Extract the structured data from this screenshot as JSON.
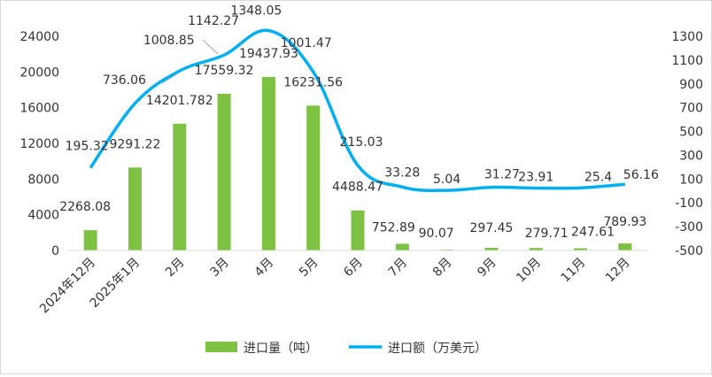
{
  "chart_data": {
    "type": "bar+line",
    "categories": [
      "2024年12月",
      "2025年1月",
      "2月",
      "3月",
      "4月",
      "5月",
      "6月",
      "7月",
      "8月",
      "9月",
      "10月",
      "11月",
      "12月"
    ],
    "series": [
      {
        "name": "进口量（吨）",
        "type": "bar",
        "axis": "left",
        "color": "#7dc242",
        "values": [
          2268.08,
          9291.22,
          14201.782,
          17559.32,
          19437.93,
          16231.56,
          4488.47,
          752.89,
          90.07,
          297.45,
          279.71,
          247.61,
          789.93
        ],
        "labels": [
          "2268.08",
          "9291.22",
          "14201.782",
          "17559.32",
          "19437.93",
          "16231.56",
          "4488.47",
          "752.89",
          "90.07",
          "297.45",
          "279.71",
          "247.61",
          "789.93"
        ]
      },
      {
        "name": "进口额（万美元）",
        "type": "line",
        "axis": "right",
        "color": "#00b0f0",
        "values": [
          195.32,
          736.06,
          1008.85,
          1142.27,
          1348.05,
          1001.47,
          215.03,
          33.28,
          5.04,
          31.27,
          23.91,
          25.4,
          56.16
        ],
        "labels": [
          "195.32",
          "736.06",
          "1008.85",
          "1142.27",
          "1348.05",
          "1001.47",
          "215.03",
          "33.28",
          "5.04",
          "31.27",
          "23.91",
          "25.4",
          "56.16"
        ]
      }
    ],
    "y_left": {
      "ylim": [
        0,
        24000
      ],
      "ticks": [
        "0",
        "4000",
        "8000",
        "12000",
        "16000",
        "20000",
        "24000"
      ]
    },
    "y_right": {
      "ylim": [
        -500,
        1300
      ],
      "ticks": [
        "-500",
        "-300",
        "-100",
        "100",
        "300",
        "500",
        "700",
        "900",
        "1100",
        "1300"
      ]
    },
    "legend_position": "bottom",
    "grid": false
  }
}
